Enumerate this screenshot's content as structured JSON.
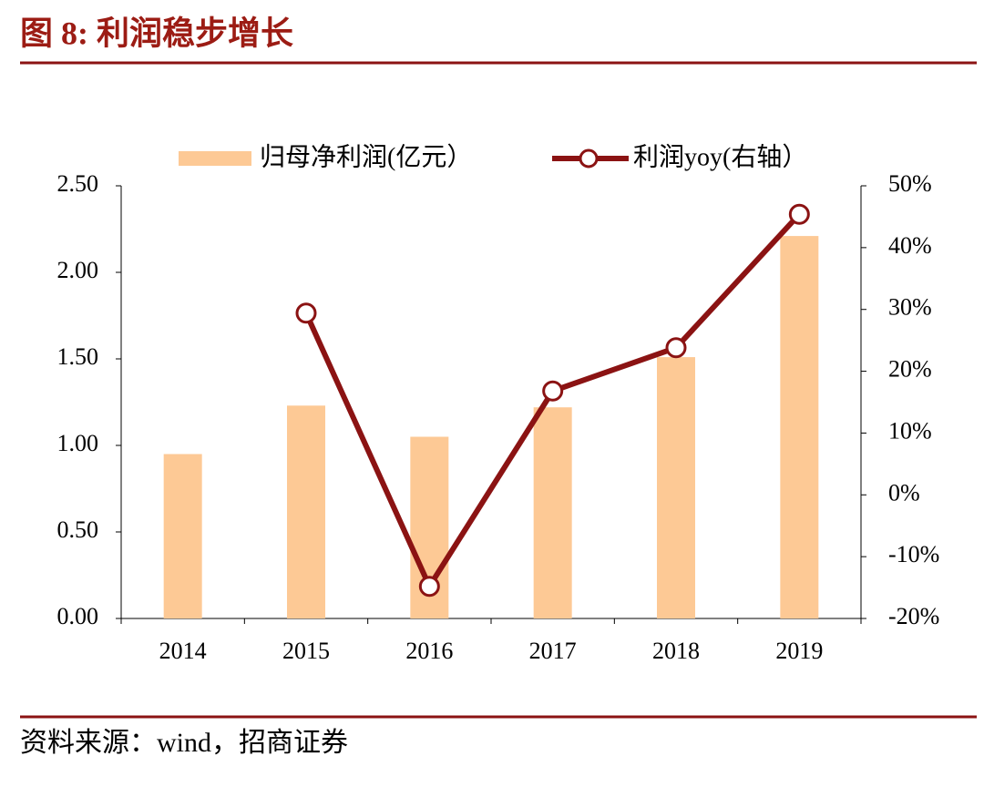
{
  "chart_data": {
    "type": "bar-line",
    "title": "图 8:  利润稳步增长",
    "source": "资料来源：wind，招商证券",
    "categories": [
      "2014",
      "2015",
      "2016",
      "2017",
      "2018",
      "2019"
    ],
    "series": [
      {
        "name": "归母净利润(亿元）",
        "type": "bar",
        "color": "#fdc995",
        "values": [
          0.95,
          1.23,
          1.05,
          1.22,
          1.51,
          2.21
        ]
      },
      {
        "name": "利润yoy(右轴）",
        "type": "line",
        "axis": "y2",
        "color": "#8b1313",
        "values": [
          null,
          29.4,
          -14.8,
          16.8,
          23.8,
          45.4
        ]
      }
    ],
    "ylim": [
      0,
      2.5
    ],
    "yticks": [
      {
        "value": 0,
        "label": "0.00"
      },
      {
        "value": 0.5,
        "label": "0.50"
      },
      {
        "value": 1,
        "label": "1.00"
      },
      {
        "value": 1.5,
        "label": "1.50"
      },
      {
        "value": 2,
        "label": "2.00"
      },
      {
        "value": 2.5,
        "label": "2.50"
      }
    ],
    "y2lim": [
      -20,
      50
    ],
    "y2ticks": [
      {
        "value": -20,
        "label": "-20%"
      },
      {
        "value": -10,
        "label": "-10%"
      },
      {
        "value": 0,
        "label": "0%"
      },
      {
        "value": 10,
        "label": "10%"
      },
      {
        "value": 20,
        "label": "20%"
      },
      {
        "value": 30,
        "label": "30%"
      },
      {
        "value": 40,
        "label": "40%"
      },
      {
        "value": 50,
        "label": "50%"
      }
    ],
    "grid": false
  }
}
